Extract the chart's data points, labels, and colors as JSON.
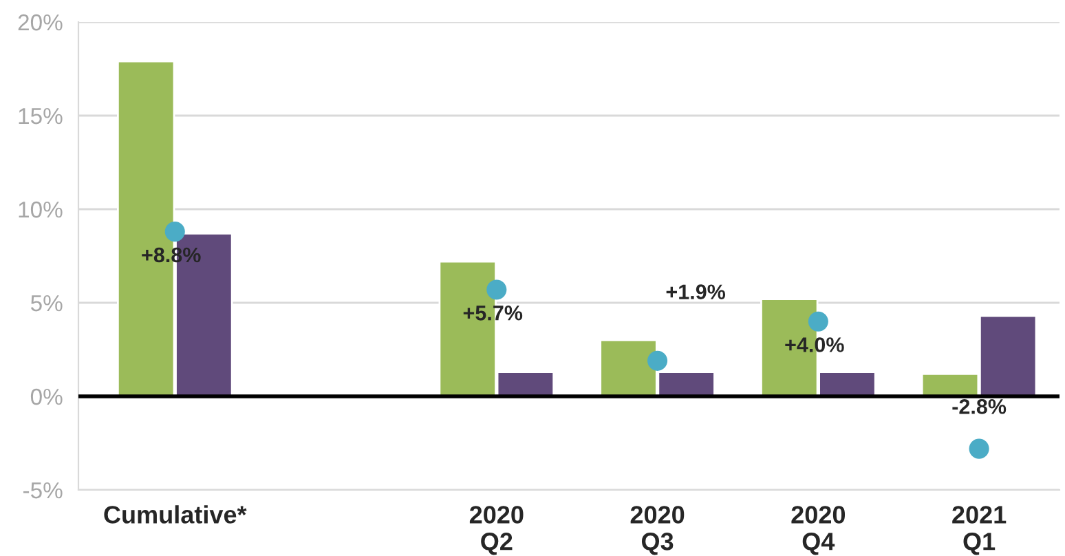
{
  "chart_data": {
    "type": "bar",
    "categories": [
      "Cumulative*",
      null,
      "2020\nQ2",
      "2020\nQ3",
      "2020\nQ4",
      "2021\nQ1"
    ],
    "series": [
      {
        "color": "#9bbb59",
        "values": [
          17.9,
          null,
          7.2,
          3.0,
          5.2,
          1.2
        ]
      },
      {
        "color": "#604a7b",
        "values": [
          8.7,
          null,
          1.3,
          1.3,
          1.3,
          4.3
        ]
      },
      {
        "type": "scatter",
        "color": "#4bacc6",
        "values": [
          8.8,
          null,
          5.7,
          1.9,
          4.0,
          -2.8
        ],
        "value_labels": [
          "+8.8%",
          null,
          "+5.7%",
          "+1.9%",
          "+4.0%",
          "-2.8%"
        ]
      }
    ],
    "ylim": [
      -5,
      20
    ],
    "yticks": [
      {
        "value": -5,
        "label": "-5%"
      },
      {
        "value": 0,
        "label": "0%"
      },
      {
        "value": 5,
        "label": "5%"
      },
      {
        "value": 10,
        "label": "10%"
      },
      {
        "value": 15,
        "label": "15%"
      },
      {
        "value": 20,
        "label": "20%"
      }
    ],
    "grid": "y",
    "marker": "circle",
    "ref_lines": [
      {
        "axis": "y",
        "value": 0,
        "color": "#000000"
      }
    ]
  }
}
